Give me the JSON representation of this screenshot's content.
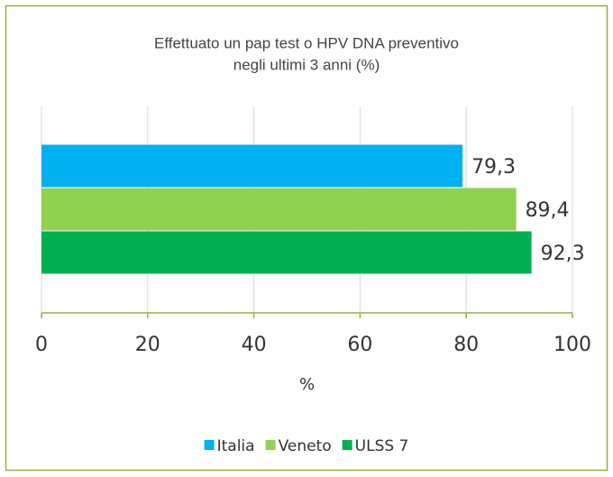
{
  "chart_data": {
    "type": "bar",
    "orientation": "horizontal",
    "title": [
      "Effettuato un pap test o HPV DNA preventivo",
      "negli ultimi 3 anni (%)"
    ],
    "categories": [
      null
    ],
    "series": [
      {
        "name": "Italia",
        "color": "#00b0f0",
        "values": [
          79.3
        ],
        "value_labels": [
          "79,3"
        ]
      },
      {
        "name": "Veneto",
        "color": "#92d050",
        "values": [
          89.4
        ],
        "value_labels": [
          "89,4"
        ]
      },
      {
        "name": "ULSS 7",
        "color": "#00b050",
        "values": [
          92.3
        ],
        "value_labels": [
          "92,3"
        ]
      }
    ],
    "xlabel": "%",
    "xlim": [
      0,
      100
    ],
    "xticks": [
      0,
      20,
      40,
      60,
      80,
      100
    ],
    "grid": true,
    "legend": "bottom"
  }
}
